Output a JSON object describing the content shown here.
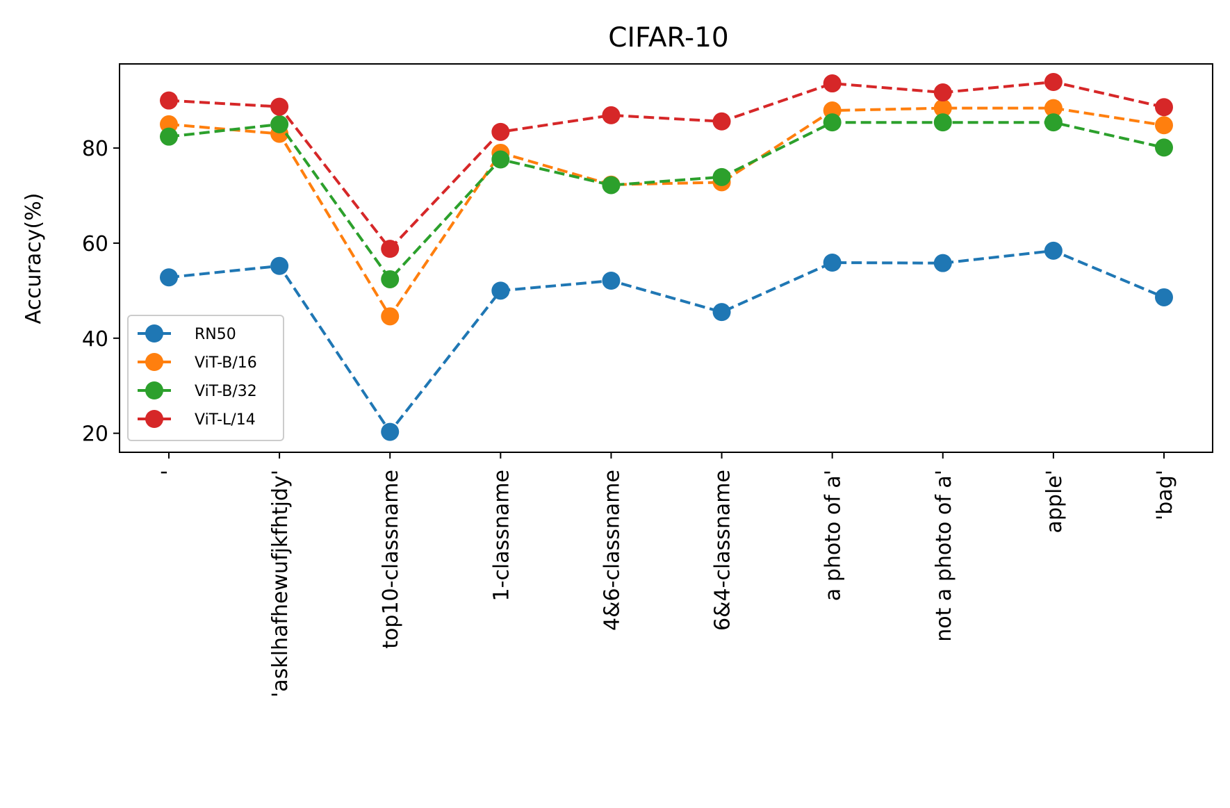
{
  "chart_data": {
    "type": "line",
    "title": "CIFAR-10",
    "xlabel": "",
    "ylabel": "Accuracy(%)",
    "categories": [
      "'",
      "'asklhafhewufjkfhtjdy'",
      "top10-classname",
      "1-classname",
      "4&6-classname",
      "6&4-classname",
      "a photo of a'",
      "not a photo of a'",
      "apple'",
      "'bag'"
    ],
    "yticks": [
      20,
      40,
      60,
      80
    ],
    "ylim": [
      16.0,
      97.7
    ],
    "grid": false,
    "legend_position": "lower-left",
    "line_style": "dashed",
    "marker": "circle",
    "series": [
      {
        "name": "RN50",
        "color": "#1f77b4",
        "values": [
          52.8,
          55.2,
          20.3,
          50.0,
          52.1,
          45.5,
          55.9,
          55.8,
          58.4,
          48.6
        ]
      },
      {
        "name": "ViT-B/16",
        "color": "#ff7f0e",
        "values": [
          85.0,
          83.0,
          44.6,
          79.0,
          72.3,
          72.8,
          87.9,
          88.4,
          88.4,
          84.8
        ]
      },
      {
        "name": "ViT-B/32",
        "color": "#2ca02c",
        "values": [
          82.4,
          85.0,
          52.4,
          77.6,
          72.2,
          73.9,
          85.4,
          85.4,
          85.4,
          80.1
        ]
      },
      {
        "name": "ViT-L/14",
        "color": "#d62728",
        "values": [
          90.0,
          88.7,
          58.8,
          83.4,
          86.9,
          85.6,
          93.6,
          91.7,
          93.9,
          88.6
        ]
      }
    ]
  }
}
